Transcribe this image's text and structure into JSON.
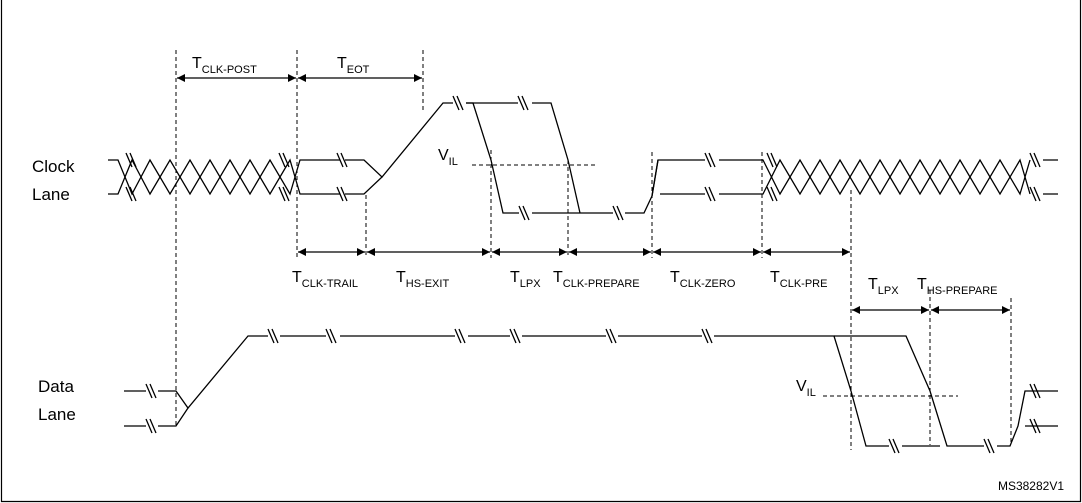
{
  "lanes": {
    "clock_line1": "Clock",
    "clock_line2": "Lane",
    "data_line1": "Data",
    "data_line2": "Lane"
  },
  "timing": {
    "clk_post": "T",
    "clk_post_sub": "CLK-POST",
    "eot": "T",
    "eot_sub": "EOT",
    "clk_trail": "T",
    "clk_trail_sub": "CLK-TRAIL",
    "hs_exit": "T",
    "hs_exit_sub": "HS-EXIT",
    "lpx": "T",
    "lpx_sub": "LPX",
    "clk_prepare": "T",
    "clk_prepare_sub": "CLK-PREPARE",
    "clk_zero": "T",
    "clk_zero_sub": "CLK-ZERO",
    "clk_pre": "T",
    "clk_pre_sub": "CLK-PRE",
    "lpx2": "T",
    "lpx2_sub": "LPX",
    "hs_prepare": "T",
    "hs_prepare_sub": "HS-PREPARE"
  },
  "thresholds": {
    "vil": "V",
    "vil_sub": "IL"
  },
  "figure_id": "MS38282V1"
}
